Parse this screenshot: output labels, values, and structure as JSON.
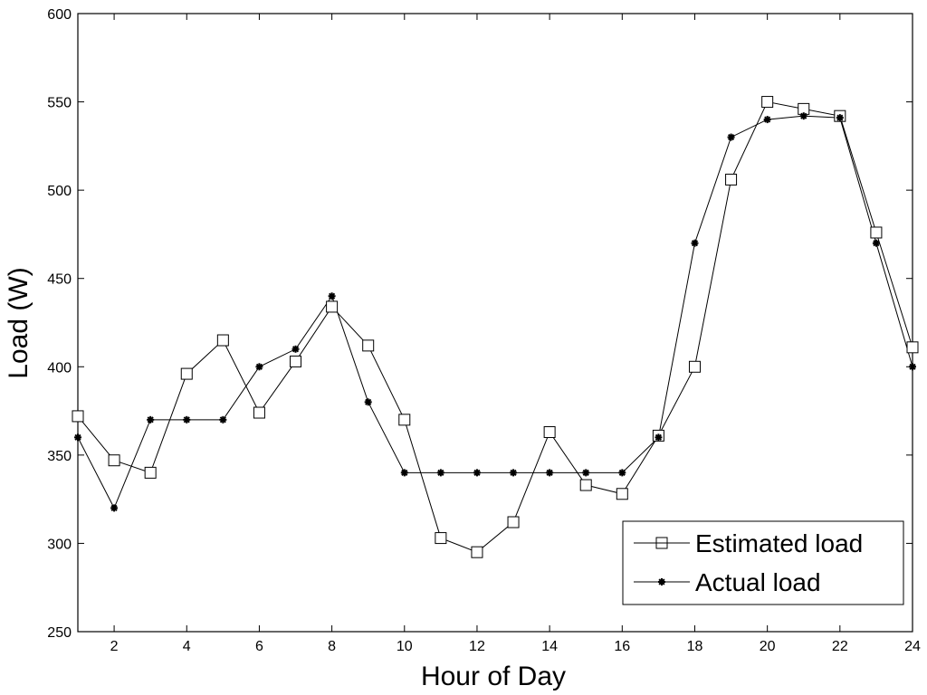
{
  "chart_data": {
    "type": "line",
    "title": "",
    "xlabel": "Hour of Day",
    "ylabel": "Load (W)",
    "xlim": [
      1,
      24
    ],
    "ylim": [
      250,
      600
    ],
    "grid": false,
    "legend_position": "bottom-right",
    "x_ticks": [
      2,
      4,
      6,
      8,
      10,
      12,
      14,
      16,
      18,
      20,
      22,
      24
    ],
    "y_ticks": [
      250,
      300,
      350,
      400,
      450,
      500,
      550,
      600
    ],
    "x": [
      1,
      2,
      3,
      4,
      5,
      6,
      7,
      8,
      9,
      10,
      11,
      12,
      13,
      14,
      15,
      16,
      17,
      18,
      19,
      20,
      21,
      22,
      23,
      24
    ],
    "series": [
      {
        "name": "Estimated load",
        "marker": "square",
        "values": [
          372,
          347,
          340,
          396,
          415,
          374,
          403,
          434,
          412,
          370,
          303,
          295,
          312,
          363,
          333,
          328,
          361,
          400,
          506,
          550,
          546,
          542,
          476,
          411
        ]
      },
      {
        "name": "Actual load",
        "marker": "star",
        "values": [
          360,
          320,
          370,
          370,
          370,
          400,
          410,
          440,
          380,
          340,
          340,
          340,
          340,
          340,
          340,
          340,
          360,
          470,
          530,
          540,
          542,
          541,
          470,
          400
        ]
      }
    ]
  }
}
